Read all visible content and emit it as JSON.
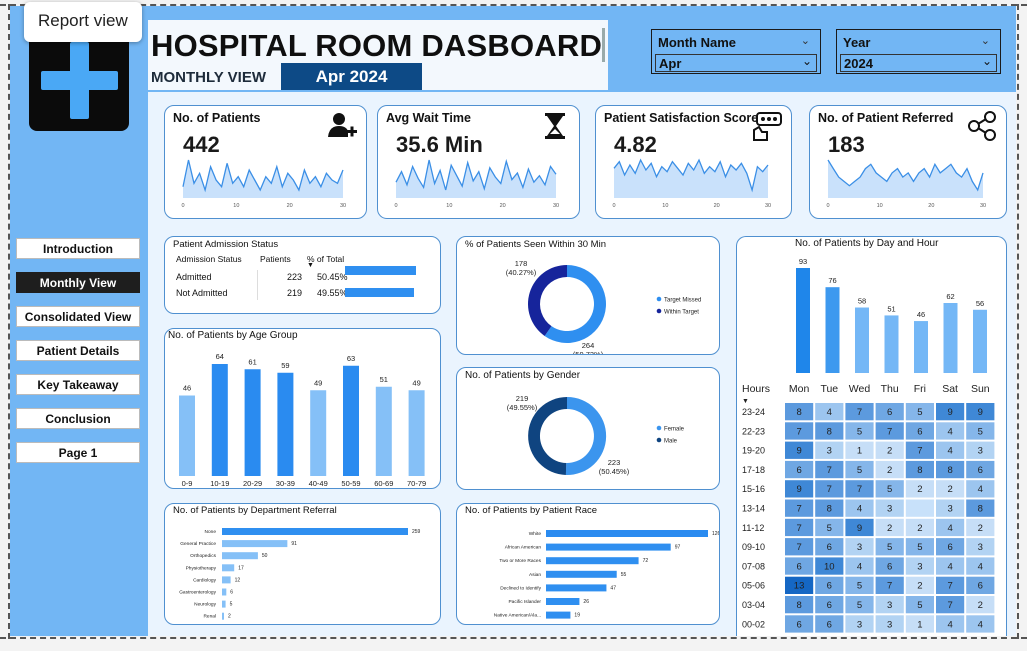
{
  "tooltip": "Report view",
  "header": {
    "title": "HOSPITAL ROOM DASBOARD",
    "subtitle": "MONTHLY VIEW",
    "period": "Apr 2024"
  },
  "slicers": [
    {
      "label": "Month Name",
      "value": "Apr"
    },
    {
      "label": "Year",
      "value": "2024"
    }
  ],
  "nav": [
    "Introduction",
    "Monthly View",
    "Consolidated View",
    "Patient Details",
    "Key Takeaway",
    "Conclusion",
    "Page 1"
  ],
  "nav_active": "Monthly View",
  "kpis": [
    {
      "title": "No. of Patients",
      "value": "442",
      "icon": "add-user-icon"
    },
    {
      "title": "Avg Wait Time",
      "value": "35.6 Min",
      "icon": "hourglass-icon"
    },
    {
      "title": "Patient Satisfaction Score",
      "value": "4.82",
      "icon": "rating-icon"
    },
    {
      "title": "No. of Patient Referred",
      "value": "183",
      "icon": "referral-icon"
    }
  ],
  "spark_ticks": [
    "0",
    "10",
    "20",
    "30"
  ],
  "admission": {
    "title": "Patient Admission Status",
    "headers": [
      "Admission Status",
      "Patients",
      "% of Total"
    ],
    "rows": [
      {
        "status": "Admitted",
        "patients": "223",
        "pct": "50.45%",
        "frac": 0.5045
      },
      {
        "status": "Not Admitted",
        "patients": "219",
        "pct": "49.55%",
        "frac": 0.4955
      }
    ]
  },
  "chart_data": [
    {
      "type": "line",
      "title": "",
      "x": [
        1,
        2,
        3,
        4,
        5,
        6,
        7,
        8,
        9,
        10,
        11,
        12,
        13,
        14,
        15,
        16,
        17,
        18,
        19,
        20,
        21,
        22,
        23,
        24,
        25,
        26,
        27,
        28,
        29,
        30
      ],
      "series": [
        {
          "values": [
            12,
            20,
            13,
            16,
            11,
            18,
            14,
            12,
            19,
            13,
            15,
            12,
            17,
            14,
            11,
            15,
            13,
            18,
            12,
            16,
            14,
            11,
            17,
            13,
            15,
            12,
            16,
            14,
            13,
            17
          ]
        }
      ],
      "xticks": [
        "0",
        "10",
        "20",
        "30"
      ]
    },
    {
      "type": "line",
      "title": "",
      "x": [
        1,
        2,
        3,
        4,
        5,
        6,
        7,
        8,
        9,
        10,
        11,
        12,
        13,
        14,
        15,
        16,
        17,
        18,
        19,
        20,
        21,
        22,
        23,
        24,
        25,
        26,
        27,
        28,
        29,
        30
      ],
      "series": [
        {
          "values": [
            30,
            38,
            28,
            42,
            33,
            26,
            47,
            29,
            39,
            24,
            43,
            35,
            27,
            45,
            31,
            38,
            25,
            41,
            34,
            29,
            46,
            32,
            37,
            26,
            40,
            30,
            35,
            28,
            42,
            36
          ]
        }
      ],
      "xticks": [
        "0",
        "10",
        "20",
        "30"
      ]
    },
    {
      "type": "line",
      "title": "",
      "x": [
        1,
        2,
        3,
        4,
        5,
        6,
        7,
        8,
        9,
        10,
        11,
        12,
        13,
        14,
        15,
        16,
        17,
        18,
        19,
        20,
        21,
        22,
        23,
        24,
        25,
        26,
        27,
        28,
        29,
        30
      ],
      "series": [
        {
          "values": [
            4.9,
            5.3,
            4.5,
            5.1,
            4.6,
            5.4,
            4.8,
            5.2,
            4.4,
            5.0,
            4.7,
            5.3,
            4.9,
            4.5,
            5.2,
            4.8,
            5.4,
            4.6,
            5.0,
            4.7,
            5.3,
            4.4,
            5.1,
            4.8,
            5.2,
            4.6,
            3.6,
            5.0,
            4.7,
            5.1
          ]
        }
      ],
      "xticks": [
        "0",
        "10",
        "20",
        "30"
      ]
    },
    {
      "type": "line",
      "title": "",
      "x": [
        1,
        2,
        3,
        4,
        5,
        6,
        7,
        8,
        9,
        10,
        11,
        12,
        13,
        14,
        15,
        16,
        17,
        18,
        19,
        20,
        21,
        22,
        23,
        24,
        25,
        26,
        27,
        28,
        29,
        30
      ],
      "series": [
        {
          "values": [
            9,
            7,
            5,
            4,
            3,
            4,
            5,
            7,
            8,
            6,
            5,
            4,
            6,
            7,
            5,
            6,
            4,
            6,
            7,
            5,
            8,
            6,
            7,
            8,
            6,
            5,
            7,
            4,
            2,
            6
          ]
        }
      ],
      "xticks": [
        "0",
        "10",
        "20",
        "30"
      ]
    },
    {
      "type": "bar",
      "title": "No. of Patients by Age Group",
      "categories": [
        "0-9",
        "10-19",
        "20-29",
        "30-39",
        "40-49",
        "50-59",
        "60-69",
        "70-79"
      ],
      "values": [
        46,
        64,
        61,
        59,
        49,
        63,
        51,
        49
      ],
      "highlight": [
        1,
        2,
        3,
        5
      ]
    },
    {
      "type": "pie",
      "title": "% of Patients Seen Within 30 Min",
      "slices": [
        {
          "name": "Target Missed",
          "value": 264,
          "label": "264 (59.73%)",
          "color": "#2f8ff0"
        },
        {
          "name": "Within Target",
          "value": 178,
          "label": "178 (40.27%)",
          "color": "#16249b"
        }
      ]
    },
    {
      "type": "pie",
      "title": "No. of Patients by Gender",
      "slices": [
        {
          "name": "Female",
          "value": 223,
          "label": "223 (50.45%)",
          "color": "#3b95ee"
        },
        {
          "name": "Male",
          "value": 219,
          "label": "219 (49.55%)",
          "color": "#0f4480"
        }
      ]
    },
    {
      "type": "bar",
      "title": "No. of Patients by Day and Hour",
      "categories": [
        "Mon",
        "Tue",
        "Wed",
        "Thu",
        "Fri",
        "Sat",
        "Sun"
      ],
      "values": [
        93,
        76,
        58,
        51,
        46,
        62,
        56
      ]
    },
    {
      "type": "bar",
      "orientation": "horizontal",
      "title": "No. of Patients by Department Referral",
      "categories": [
        "None",
        "General Practice",
        "Orthopedics",
        "Physiotherapy",
        "Cardiology",
        "Gastroenterology",
        "Neurology",
        "Renal"
      ],
      "values": [
        259,
        91,
        50,
        17,
        12,
        6,
        5,
        2
      ]
    },
    {
      "type": "bar",
      "orientation": "horizontal",
      "title": "No. of Patients by Patient Race",
      "categories": [
        "White",
        "African American",
        "Two or More Races",
        "Asian",
        "Declined to Identify",
        "Pacific Islander",
        "Native American/Ala..."
      ],
      "values": [
        126,
        97,
        72,
        55,
        47,
        26,
        19
      ]
    },
    {
      "type": "heatmap",
      "title": "",
      "row_header": "Hours",
      "columns": [
        "Mon",
        "Tue",
        "Wed",
        "Thu",
        "Fri",
        "Sat",
        "Sun"
      ],
      "rows": [
        "23-24",
        "22-23",
        "19-20",
        "17-18",
        "15-16",
        "13-14",
        "11-12",
        "09-10",
        "07-08",
        "05-06",
        "03-04",
        "00-02"
      ],
      "values": [
        [
          8,
          4,
          7,
          6,
          5,
          9,
          9
        ],
        [
          7,
          8,
          5,
          7,
          6,
          4,
          5
        ],
        [
          9,
          3,
          1,
          2,
          7,
          4,
          3
        ],
        [
          6,
          7,
          5,
          2,
          8,
          8,
          6
        ],
        [
          9,
          7,
          7,
          5,
          2,
          2,
          4
        ],
        [
          7,
          8,
          4,
          3,
          null,
          3,
          8
        ],
        [
          7,
          5,
          9,
          2,
          2,
          4,
          2
        ],
        [
          7,
          6,
          3,
          5,
          5,
          6,
          3
        ],
        [
          6,
          10,
          4,
          6,
          3,
          4,
          4
        ],
        [
          13,
          6,
          5,
          7,
          2,
          7,
          6
        ],
        [
          8,
          6,
          5,
          3,
          5,
          7,
          2
        ],
        [
          6,
          6,
          3,
          3,
          1,
          4,
          4
        ]
      ]
    }
  ]
}
